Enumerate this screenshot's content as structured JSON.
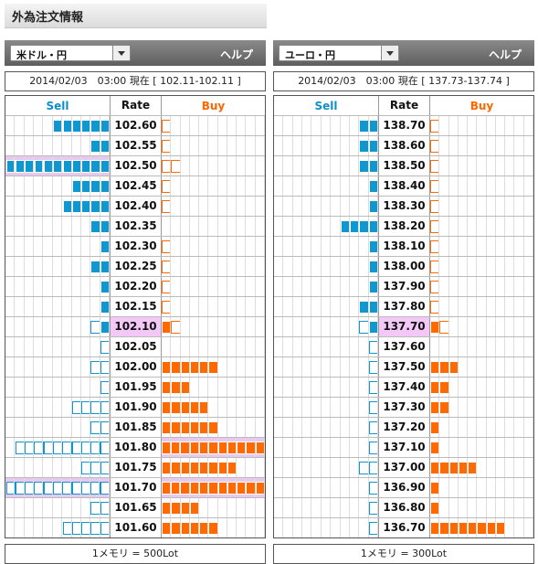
{
  "page_title": "外為注文情報",
  "colors": {
    "sell": "#0f98d0",
    "buy": "#ff6a00",
    "highlight": "#e9c8ef"
  },
  "panels": [
    {
      "pair": "米ドル・円",
      "help": "ヘルプ",
      "status": "2014/02/03　03:00 現在 [ 102.11-102.11 ]",
      "headers": {
        "sell": "Sell",
        "rate": "Rate",
        "buy": "Buy"
      },
      "footer": "1メモリ = 500Lot",
      "rows": [
        {
          "rate": "102.60",
          "sell": 6,
          "sell_open": 0,
          "buy": 0,
          "buy_open": 1
        },
        {
          "rate": "102.55",
          "sell": 2,
          "sell_open": 0,
          "buy": 0,
          "buy_open": 1
        },
        {
          "rate": "102.50",
          "sell": 11,
          "sell_open": 0,
          "buy": 0,
          "buy_open": 2,
          "hl_sell": true
        },
        {
          "rate": "102.45",
          "sell": 4,
          "sell_open": 0,
          "buy": 0,
          "buy_open": 1
        },
        {
          "rate": "102.40",
          "sell": 5,
          "sell_open": 0,
          "buy": 0,
          "buy_open": 1
        },
        {
          "rate": "102.35",
          "sell": 2,
          "sell_open": 0,
          "buy": 0,
          "buy_open": 0
        },
        {
          "rate": "102.30",
          "sell": 1,
          "sell_open": 0,
          "buy": 0,
          "buy_open": 1
        },
        {
          "rate": "102.25",
          "sell": 2,
          "sell_open": 0,
          "buy": 0,
          "buy_open": 1
        },
        {
          "rate": "102.20",
          "sell": 1,
          "sell_open": 0,
          "buy": 0,
          "buy_open": 1
        },
        {
          "rate": "102.15",
          "sell": 1,
          "sell_open": 0,
          "buy": 0,
          "buy_open": 1
        },
        {
          "rate": "102.10",
          "sell": 1,
          "sell_open": 1,
          "buy": 1,
          "buy_open": 1,
          "current": true
        },
        {
          "rate": "102.05",
          "sell": 0,
          "sell_open": 1,
          "buy": 0,
          "buy_open": 0
        },
        {
          "rate": "102.00",
          "sell": 0,
          "sell_open": 2,
          "buy": 6,
          "buy_open": 0
        },
        {
          "rate": "101.95",
          "sell": 0,
          "sell_open": 1,
          "buy": 3,
          "buy_open": 0
        },
        {
          "rate": "101.90",
          "sell": 0,
          "sell_open": 4,
          "buy": 5,
          "buy_open": 0
        },
        {
          "rate": "101.85",
          "sell": 0,
          "sell_open": 2,
          "buy": 6,
          "buy_open": 0
        },
        {
          "rate": "101.80",
          "sell": 0,
          "sell_open": 10,
          "buy": 11,
          "buy_open": 0,
          "hl_buy": true
        },
        {
          "rate": "101.75",
          "sell": 0,
          "sell_open": 3,
          "buy": 8,
          "buy_open": 0
        },
        {
          "rate": "101.70",
          "sell": 0,
          "sell_open": 11,
          "buy": 11,
          "buy_open": 0,
          "hl_sell": true,
          "hl_buy": true
        },
        {
          "rate": "101.65",
          "sell": 0,
          "sell_open": 2,
          "buy": 4,
          "buy_open": 0
        },
        {
          "rate": "101.60",
          "sell": 0,
          "sell_open": 5,
          "buy": 6,
          "buy_open": 0
        }
      ]
    },
    {
      "pair": "ユーロ・円",
      "help": "ヘルプ",
      "status": "2014/02/03　03:00 現在 [ 137.73-137.74 ]",
      "headers": {
        "sell": "Sell",
        "rate": "Rate",
        "buy": "Buy"
      },
      "footer": "1メモリ = 300Lot",
      "rows": [
        {
          "rate": "138.70",
          "sell": 2,
          "sell_open": 0,
          "buy": 0,
          "buy_open": 1
        },
        {
          "rate": "138.60",
          "sell": 2,
          "sell_open": 0,
          "buy": 0,
          "buy_open": 1
        },
        {
          "rate": "138.50",
          "sell": 2,
          "sell_open": 0,
          "buy": 0,
          "buy_open": 1
        },
        {
          "rate": "138.40",
          "sell": 1,
          "sell_open": 0,
          "buy": 0,
          "buy_open": 1
        },
        {
          "rate": "138.30",
          "sell": 1,
          "sell_open": 0,
          "buy": 0,
          "buy_open": 1
        },
        {
          "rate": "138.20",
          "sell": 4,
          "sell_open": 0,
          "buy": 0,
          "buy_open": 1
        },
        {
          "rate": "138.10",
          "sell": 1,
          "sell_open": 0,
          "buy": 0,
          "buy_open": 1
        },
        {
          "rate": "138.00",
          "sell": 1,
          "sell_open": 0,
          "buy": 0,
          "buy_open": 1
        },
        {
          "rate": "137.90",
          "sell": 1,
          "sell_open": 0,
          "buy": 0,
          "buy_open": 1
        },
        {
          "rate": "137.80",
          "sell": 2,
          "sell_open": 0,
          "buy": 0,
          "buy_open": 1
        },
        {
          "rate": "137.70",
          "sell": 1,
          "sell_open": 1,
          "buy": 1,
          "buy_open": 1,
          "current": true
        },
        {
          "rate": "137.60",
          "sell": 0,
          "sell_open": 1,
          "buy": 0,
          "buy_open": 0
        },
        {
          "rate": "137.50",
          "sell": 0,
          "sell_open": 1,
          "buy": 3,
          "buy_open": 0
        },
        {
          "rate": "137.40",
          "sell": 0,
          "sell_open": 1,
          "buy": 2,
          "buy_open": 0
        },
        {
          "rate": "137.30",
          "sell": 0,
          "sell_open": 1,
          "buy": 2,
          "buy_open": 0
        },
        {
          "rate": "137.20",
          "sell": 0,
          "sell_open": 1,
          "buy": 1,
          "buy_open": 0
        },
        {
          "rate": "137.10",
          "sell": 0,
          "sell_open": 1,
          "buy": 1,
          "buy_open": 0
        },
        {
          "rate": "137.00",
          "sell": 0,
          "sell_open": 2,
          "buy": 5,
          "buy_open": 0
        },
        {
          "rate": "136.90",
          "sell": 0,
          "sell_open": 1,
          "buy": 1,
          "buy_open": 0
        },
        {
          "rate": "136.80",
          "sell": 0,
          "sell_open": 1,
          "buy": 1,
          "buy_open": 0
        },
        {
          "rate": "136.70",
          "sell": 0,
          "sell_open": 1,
          "buy": 8,
          "buy_open": 0
        }
      ]
    }
  ]
}
